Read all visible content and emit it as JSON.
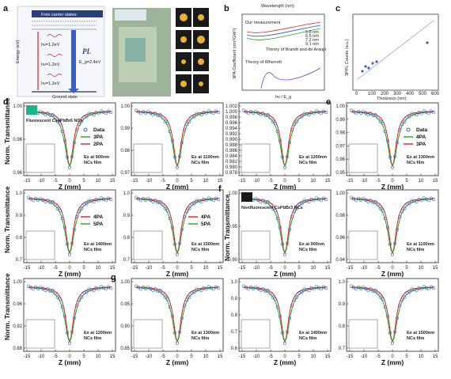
{
  "panel_labels": [
    "a",
    "b",
    "c",
    "d",
    "e",
    "f",
    "g"
  ],
  "panel_a": {
    "top_band": "Free carrier states",
    "levels": [
      "3",
      ".",
      "2",
      "1"
    ],
    "ylabel": "Energy (eV)",
    "photon_labels": [
      "hν=1.2eV",
      "hν=1.2eV",
      "hν=1.2eV"
    ],
    "pl_label": "PL",
    "eg_label": "E_g=2.4eV",
    "bottom": "Ground state"
  },
  "panel_b": {
    "top_axis_label": "Wavelength (nm)",
    "ylabel": "3PA Coefficient (cm³/GW²)",
    "xlabel": "hν / E_g",
    "annotations": [
      "Our measurement",
      "Theory of Brandt and de Araujo",
      "Theory of Wherrett"
    ],
    "legend": [
      "5.8 nm",
      "6.5 nm",
      "7.2 nm",
      "9.1 nm"
    ]
  },
  "panel_c": {
    "ylabel": "3PPL Counts (a.u.)",
    "xlabel": "Thickness (nm)",
    "xticks": [
      "0",
      "100",
      "200",
      "300",
      "400",
      "500",
      "600"
    ]
  },
  "row_ylabel": "Norm. Transmittance",
  "xlabel": "Z (mm)",
  "subplots": [
    {
      "tag": "d",
      "ticks": [
        "1.00",
        "0.98",
        "0.96"
      ],
      "legend": [
        "Data",
        "3PA",
        "2PA"
      ],
      "ex": [
        "Ex at 900nm",
        "NCs film"
      ],
      "inset": "Fluorescent Cs4PbBr6 NCs"
    },
    {
      "tag": "",
      "ticks": [
        "1.00",
        "0.99",
        "0.98",
        "0.97"
      ],
      "legend": [],
      "ex": [
        "Ex at 1100nm",
        "NCs film"
      ],
      "inset": ""
    },
    {
      "tag": "",
      "ticks": [
        "1.002",
        "1.000",
        "0.998",
        "0.996",
        "0.994",
        "0.992",
        "0.990",
        "0.988",
        "0.986",
        "0.984",
        "0.982",
        "0.980",
        "0.978"
      ],
      "legend": [],
      "ex": [
        "Ex at 1200nm",
        "NCs film"
      ],
      "inset": ""
    },
    {
      "tag": "e",
      "ticks": [
        "1.00",
        "0.99",
        "0.98",
        "0.97",
        "0.96",
        "0.95"
      ],
      "legend": [
        "Data",
        "4PA",
        "3PA"
      ],
      "ex": [
        "Ex at 1300nm",
        "NCs film"
      ],
      "inset": ""
    },
    {
      "tag": "",
      "ticks": [
        "1.0",
        "0.9",
        "0.8",
        "0.7"
      ],
      "legend": [
        "4PA",
        "5PA"
      ],
      "ex": [
        "Ex at 1400nm",
        "NCs film"
      ],
      "inset": ""
    },
    {
      "tag": "",
      "ticks": [
        "1.0",
        "0.9",
        "0.8",
        "0.7"
      ],
      "legend": [
        "4PA",
        "5PA"
      ],
      "ex": [
        "Ex at 1500nm",
        "NCs film"
      ],
      "inset": ""
    },
    {
      "tag": "f",
      "ticks": [
        "1.00",
        "0.95",
        "0.90"
      ],
      "legend": [],
      "ex": [
        "Ex at 900nm",
        "NCs film"
      ],
      "inset": "Nonfluorescent CsPbBr3 NCs"
    },
    {
      "tag": "",
      "ticks": [
        "1.00",
        "0.98",
        "0.96",
        "0.94"
      ],
      "legend": [],
      "ex": [
        "Ex at 1100nm",
        "NCs film"
      ],
      "inset": ""
    },
    {
      "tag": "",
      "ticks": [
        "1.00",
        "0.96",
        "0.92",
        "0.88"
      ],
      "legend": [],
      "ex": [
        "Ex at 1200nm",
        "NCs film"
      ],
      "inset": ""
    },
    {
      "tag": "g",
      "ticks": [
        "1.00",
        "0.95",
        "0.90",
        "0.85"
      ],
      "legend": [],
      "ex": [
        "Ex at 1300nm",
        "NCs film"
      ],
      "inset": ""
    },
    {
      "tag": "",
      "ticks": [
        "1.0",
        "0.9",
        "0.8",
        "0.7",
        "0.6"
      ],
      "legend": [],
      "ex": [
        "Ex at 1400nm",
        "NCs film"
      ],
      "inset": ""
    },
    {
      "tag": "",
      "ticks": [
        "1.0",
        "0.9",
        "0.8",
        "0.7"
      ],
      "legend": [],
      "ex": [
        "Ex at 1500nm",
        "NCs film"
      ],
      "inset": ""
    }
  ],
  "xticks": [
    "-15",
    "-10",
    "-5",
    "0",
    "5",
    "10",
    "15"
  ],
  "colors": {
    "data": "#3a5fc0",
    "fit_green": "#2aa12a",
    "fit_red": "#e02020",
    "axis": "#222222"
  }
}
